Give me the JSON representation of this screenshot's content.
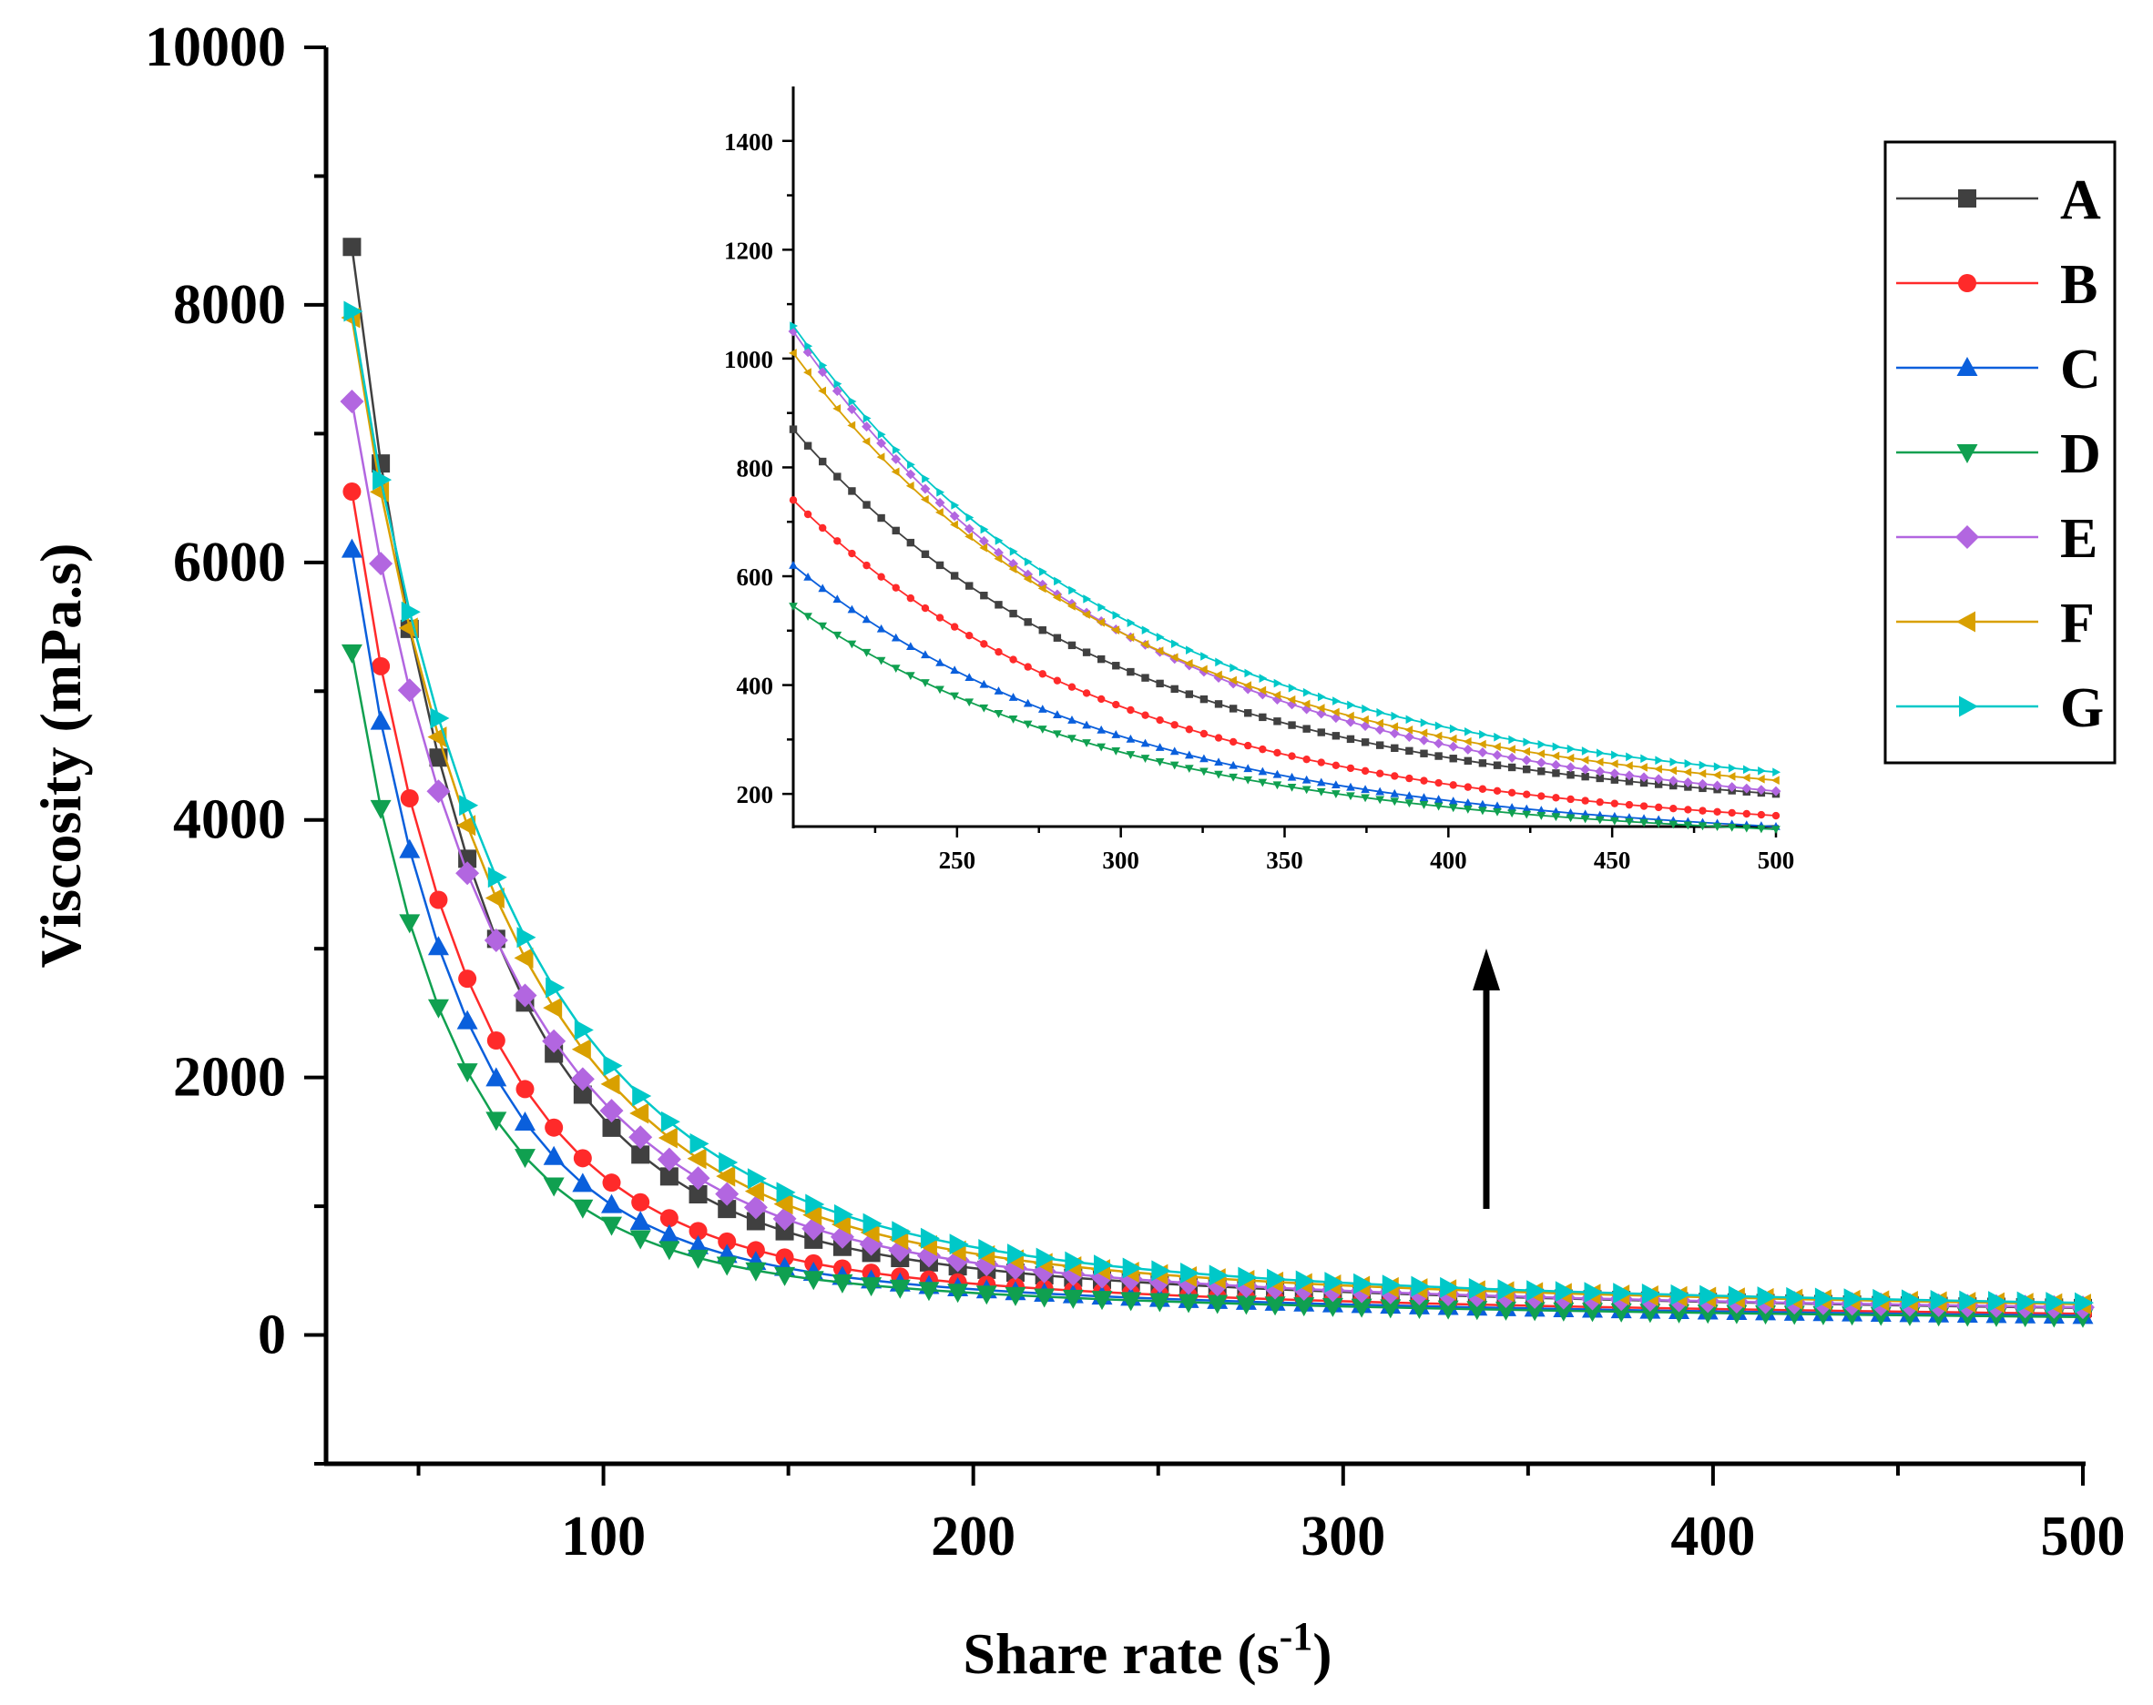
{
  "chart_data": {
    "type": "line",
    "xlabel": "Share rate (s",
    "xlabel_superscript": "-1",
    "xlabel_suffix": ")",
    "ylabel": "Viscosity (mPa.s)",
    "xlim": [
      25,
      500
    ],
    "ylim": [
      -1000,
      10000
    ],
    "x_ticks": [
      100,
      200,
      300,
      400,
      500
    ],
    "x_tick_labels": [
      "100",
      "200",
      "300",
      "400",
      "500"
    ],
    "y_ticks": [
      0,
      2000,
      4000,
      6000,
      8000,
      10000
    ],
    "y_tick_labels": [
      "0",
      "2000",
      "4000",
      "6000",
      "8000",
      "10000"
    ],
    "legend_position": "top-right",
    "series": [
      {
        "name": "A",
        "color": "#404040",
        "marker": "square",
        "params": {
          "a": 8450,
          "k": 33.5,
          "b": 210,
          "pw": 0.9
        }
      },
      {
        "name": "B",
        "color": "#ff2a2a",
        "marker": "circle",
        "params": {
          "a": 6550,
          "k": 31.5,
          "b": 165,
          "pw": 0.9
        }
      },
      {
        "name": "C",
        "color": "#0a5fdc",
        "marker": "triangle-up",
        "params": {
          "a": 6100,
          "k": 29,
          "b": 150,
          "pw": 0.9
        }
      },
      {
        "name": "D",
        "color": "#10a050",
        "marker": "triangle-down",
        "params": {
          "a": 5300,
          "k": 27,
          "b": 140,
          "pw": 0.9
        }
      },
      {
        "name": "E",
        "color": "#b266e0",
        "marker": "diamond",
        "params": {
          "a": 7250,
          "k": 41,
          "b": 215,
          "pw": 0.88
        }
      },
      {
        "name": "F",
        "color": "#d9a000",
        "marker": "triangle-left",
        "params": {
          "a": 7900,
          "k": 42,
          "b": 240,
          "pw": 0.88
        }
      },
      {
        "name": "G",
        "color": "#00c8c8",
        "marker": "triangle-right",
        "params": {
          "a": 7950,
          "k": 45,
          "b": 250,
          "pw": 0.88
        }
      }
    ],
    "inset": {
      "xlim": [
        200,
        500
      ],
      "ylim": [
        140,
        1500
      ],
      "x_ticks": [
        250,
        300,
        350,
        400,
        450,
        500
      ],
      "x_tick_labels": [
        "250",
        "300",
        "350",
        "400",
        "450",
        "500"
      ],
      "y_ticks": [
        200,
        400,
        600,
        800,
        1000,
        1200,
        1400
      ],
      "y_tick_labels": [
        "200",
        "400",
        "600",
        "800",
        "1000",
        "1200",
        "1400"
      ],
      "series": [
        {
          "name": "A",
          "start": 870,
          "end": 200,
          "n": 68
        },
        {
          "name": "B",
          "start": 740,
          "end": 160,
          "n": 68
        },
        {
          "name": "C",
          "start": 620,
          "end": 140,
          "n": 68
        },
        {
          "name": "D",
          "start": 545,
          "end": 135,
          "n": 68
        },
        {
          "name": "E",
          "start": 1050,
          "end": 205,
          "n": 68
        },
        {
          "name": "F",
          "start": 1010,
          "end": 225,
          "n": 68
        },
        {
          "name": "G",
          "start": 1060,
          "end": 240,
          "n": 68
        }
      ]
    }
  }
}
